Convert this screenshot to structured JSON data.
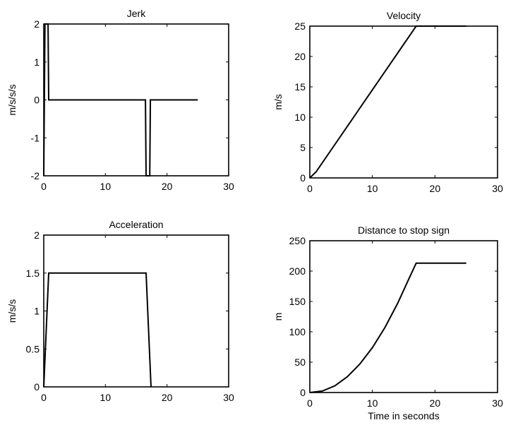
{
  "chart_data": [
    {
      "type": "line",
      "title": "Jerk",
      "xlabel": "",
      "ylabel": "m/s/s/s",
      "xlim": [
        0,
        30
      ],
      "ylim": [
        -2,
        2
      ],
      "xticks": [
        0,
        10,
        20,
        30
      ],
      "yticks": [
        -2,
        -1,
        0,
        1,
        2
      ],
      "series": [
        {
          "x": [
            0,
            0.2,
            0.7,
            0.8,
            16.5,
            16.6,
            17.2,
            17.3,
            25
          ],
          "y": [
            -2,
            2,
            2,
            0,
            0,
            -2,
            -2,
            0,
            0
          ]
        }
      ]
    },
    {
      "type": "line",
      "title": "Velocity",
      "xlabel": "",
      "ylabel": "m/s",
      "xlim": [
        0,
        30
      ],
      "ylim": [
        0,
        25
      ],
      "xticks": [
        0,
        10,
        20,
        30
      ],
      "yticks": [
        0,
        5,
        10,
        15,
        20,
        25
      ],
      "series": [
        {
          "x": [
            0,
            1,
            17,
            25
          ],
          "y": [
            0,
            1,
            25,
            25
          ]
        }
      ]
    },
    {
      "type": "line",
      "title": "Acceleration",
      "xlabel": "",
      "ylabel": "m/s/s",
      "xlim": [
        0,
        30
      ],
      "ylim": [
        0,
        2
      ],
      "xticks": [
        0,
        10,
        20,
        30
      ],
      "yticks": [
        0,
        0.5,
        1,
        1.5,
        2
      ],
      "series": [
        {
          "x": [
            0,
            0.8,
            16.6,
            17.4
          ],
          "y": [
            0,
            1.5,
            1.5,
            0
          ]
        }
      ]
    },
    {
      "type": "line",
      "title": "Distance to stop sign",
      "xlabel": "Time in seconds",
      "ylabel": "m",
      "xlim": [
        0,
        30
      ],
      "ylim": [
        0,
        250
      ],
      "xticks": [
        0,
        10,
        20,
        30
      ],
      "yticks": [
        0,
        50,
        100,
        150,
        200,
        250
      ],
      "series": [
        {
          "x": [
            0,
            2,
            4,
            6,
            8,
            10,
            12,
            14,
            16,
            17,
            25
          ],
          "y": [
            0,
            2.5,
            11,
            26,
            47,
            74,
            107,
            146,
            191,
            213,
            213
          ]
        }
      ]
    }
  ]
}
